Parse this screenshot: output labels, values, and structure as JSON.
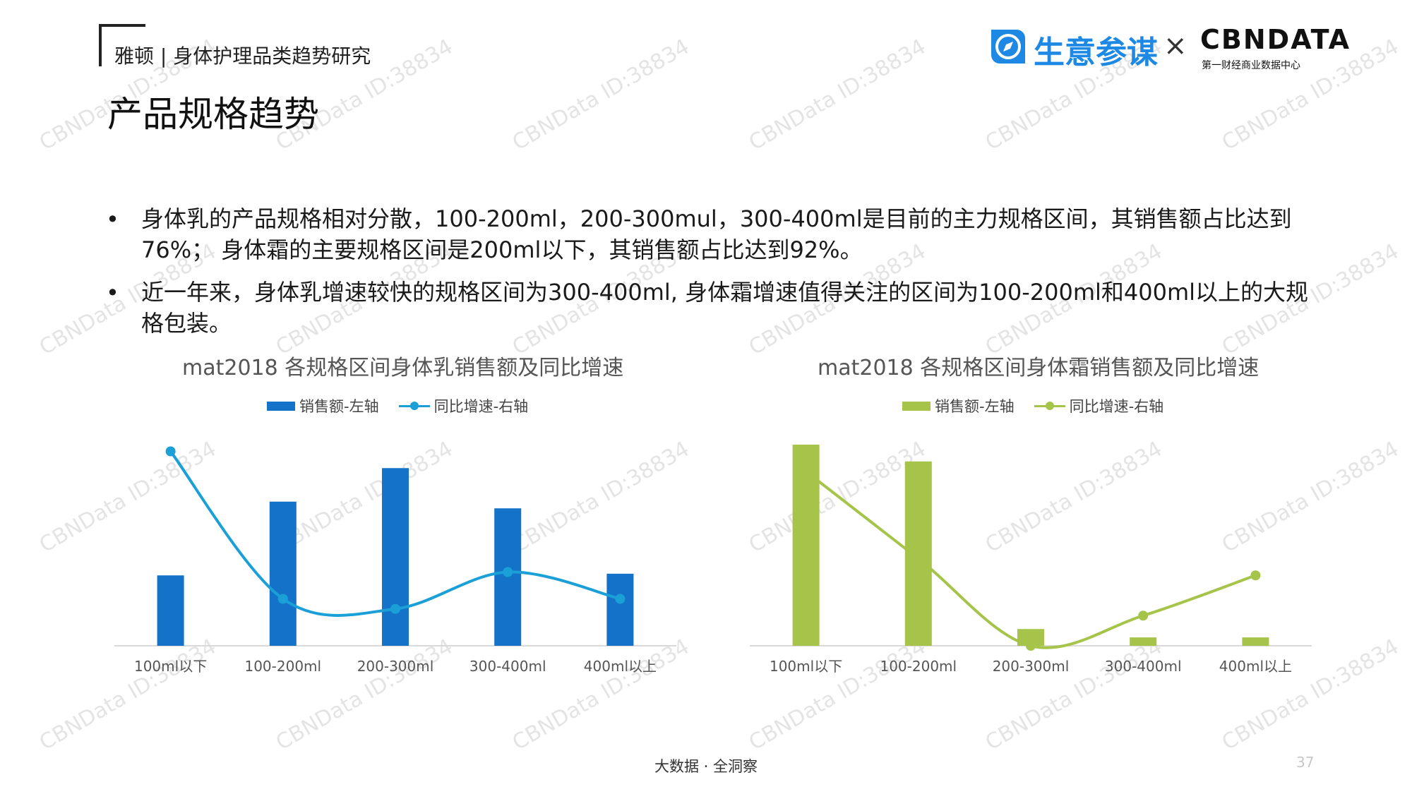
{
  "header": {
    "brand": "雅顿 | 身体护理品类趋势研究",
    "title": "产品规格趋势",
    "logo_name": "生意参谋",
    "logo_x": "×",
    "cbn_name": "CBNDATA",
    "cbn_sub": "第一财经商业数据中心"
  },
  "bullets": [
    {
      "marker": "•",
      "text": "身体乳的产品规格相对分散，100-200ml，200-300mul，300-400ml是目前的主力规格区间，其销售额占比达到76%； 身体霜的主要规格区间是200ml以下，其销售额占比达到92%。"
    },
    {
      "marker": "•",
      "text": "近一年来，身体乳增速较快的规格区间为300-400ml, 身体霜增速值得关注的区间为100-200ml和400ml以上的大规格包装。"
    }
  ],
  "watermark": "CBNData ID:38834",
  "footer": {
    "text": "大数据 · 全洞察",
    "page": "37"
  },
  "colors": {
    "lotion_bar": "#1473c9",
    "lotion_line": "#1a9fd6",
    "cream_bar": "#a6c44a",
    "cream_line": "#a6c44a",
    "axis": "#d9d9d9"
  },
  "chart_data": [
    {
      "type": "bar",
      "title": "mat2018 各规格区间身体乳销售额及同比增速",
      "categories": [
        "100ml以下",
        "100-200ml",
        "200-300ml",
        "300-400ml",
        "400ml以上"
      ],
      "series": [
        {
          "name": "销售额-左轴",
          "type": "bar",
          "axis": "left",
          "values": [
            21,
            43,
            53,
            41,
            21.5
          ]
        },
        {
          "name": "同比增速-右轴",
          "type": "line",
          "axis": "right",
          "smooth": true,
          "marker": "circle",
          "values": [
            58,
            14,
            11,
            22,
            14
          ]
        }
      ],
      "ylim_left": [
        0,
        60
      ],
      "ylim_right": [
        0,
        60
      ],
      "legend": "top",
      "grid": false
    },
    {
      "type": "bar",
      "title": "mat2018 各规格区间身体霜销售额及同比增速",
      "categories": [
        "100ml以下",
        "100-200ml",
        "200-300ml",
        "300-400ml",
        "400ml以上"
      ],
      "series": [
        {
          "name": "销售额-左轴",
          "type": "bar",
          "axis": "left",
          "values": [
            60,
            55,
            5,
            2.5,
            2.5
          ]
        },
        {
          "name": "同比增速-右轴",
          "type": "line",
          "axis": "right",
          "smooth": true,
          "marker": "circle",
          "values": [
            52,
            26,
            0,
            9,
            21
          ]
        }
      ],
      "ylim_left": [
        0,
        60
      ],
      "ylim_right": [
        0,
        60
      ],
      "legend": "top",
      "grid": false
    }
  ]
}
